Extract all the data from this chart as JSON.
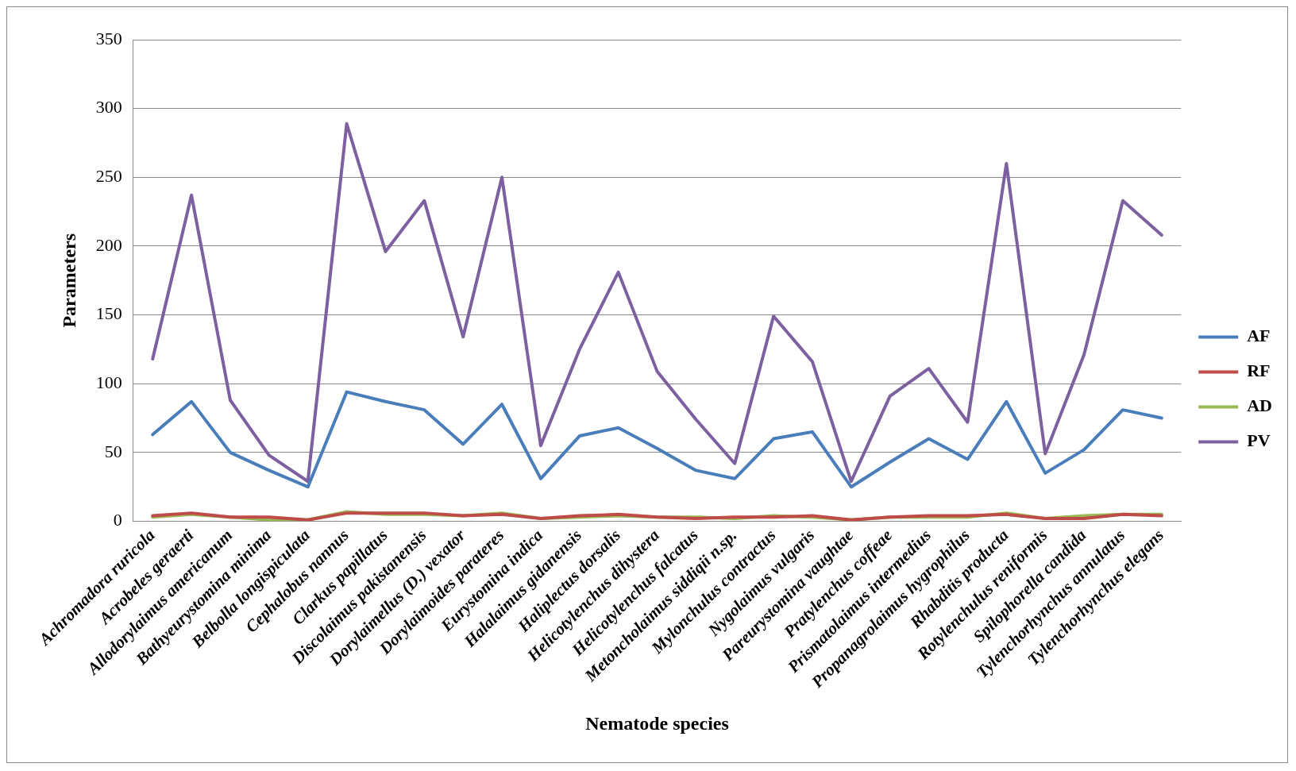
{
  "chart_data": {
    "type": "line",
    "xlabel": "Nematode species",
    "ylabel": "Parameters",
    "categories": [
      "Achromadora ruricola",
      "Acrobeles geraerti",
      "Allodorylaimus americanum",
      "Bathyeurystomina minima",
      "Belbolla longispiculata",
      "Cephalobus nannus",
      "Clarkus papillatus",
      "Discolaimus pakistanensis",
      "Dorylaimellus (D.) vexator",
      "Dorylaimoides parateres",
      "Eurystomina indica",
      "Halalaimus gidanensis",
      "Haliplectus dorsalis",
      "Helicotylenchus dihystera",
      "Helicotylenchus falcatus",
      "Metoncholaimus siddiqii n.sp.",
      "Mylonchulus contractus",
      "Nygolaimus vulgaris",
      "Pareurystomina vaughtae",
      "Pratylenchus coffeae",
      "Prismatolaimus intermedius",
      "Propanagrolaimus hygrophilus",
      "Rhabditis producta",
      "Rotylenchulus reniformis",
      "Spilophorella candida",
      "Tylenchorhynchus annulatus",
      "Tylenchorhynchus elegans"
    ],
    "series": [
      {
        "name": "AF",
        "color": "#4a7ebb",
        "values": [
          63,
          87,
          50,
          37,
          25,
          94,
          87,
          81,
          56,
          85,
          31,
          62,
          68,
          53,
          37,
          31,
          60,
          65,
          25,
          43,
          60,
          45,
          87,
          35,
          52,
          81,
          75
        ]
      },
      {
        "name": "RF",
        "color": "#be4b48",
        "values": [
          4,
          6,
          3,
          3,
          1,
          6,
          6,
          6,
          4,
          5,
          2,
          4,
          5,
          3,
          2,
          3,
          3,
          4,
          1,
          3,
          4,
          4,
          5,
          2,
          2,
          5,
          4
        ]
      },
      {
        "name": "AD",
        "color": "#98b954",
        "values": [
          3,
          5,
          3,
          1,
          1,
          7,
          5,
          5,
          4,
          6,
          2,
          3,
          4,
          3,
          3,
          2,
          4,
          3,
          1,
          3,
          3,
          3,
          6,
          2,
          4,
          5,
          5
        ]
      },
      {
        "name": "PV",
        "color": "#7d60a0",
        "values": [
          118,
          237,
          88,
          48,
          29,
          289,
          196,
          233,
          134,
          250,
          55,
          125,
          181,
          109,
          74,
          42,
          149,
          116,
          29,
          91,
          111,
          72,
          260,
          49,
          121,
          233,
          208
        ]
      }
    ],
    "ylim": [
      0,
      350
    ],
    "yticks": [
      0,
      50,
      100,
      150,
      200,
      250,
      300,
      350
    ],
    "grid": "y",
    "legend": "right",
    "marker": "none",
    "line_style": "solid"
  }
}
